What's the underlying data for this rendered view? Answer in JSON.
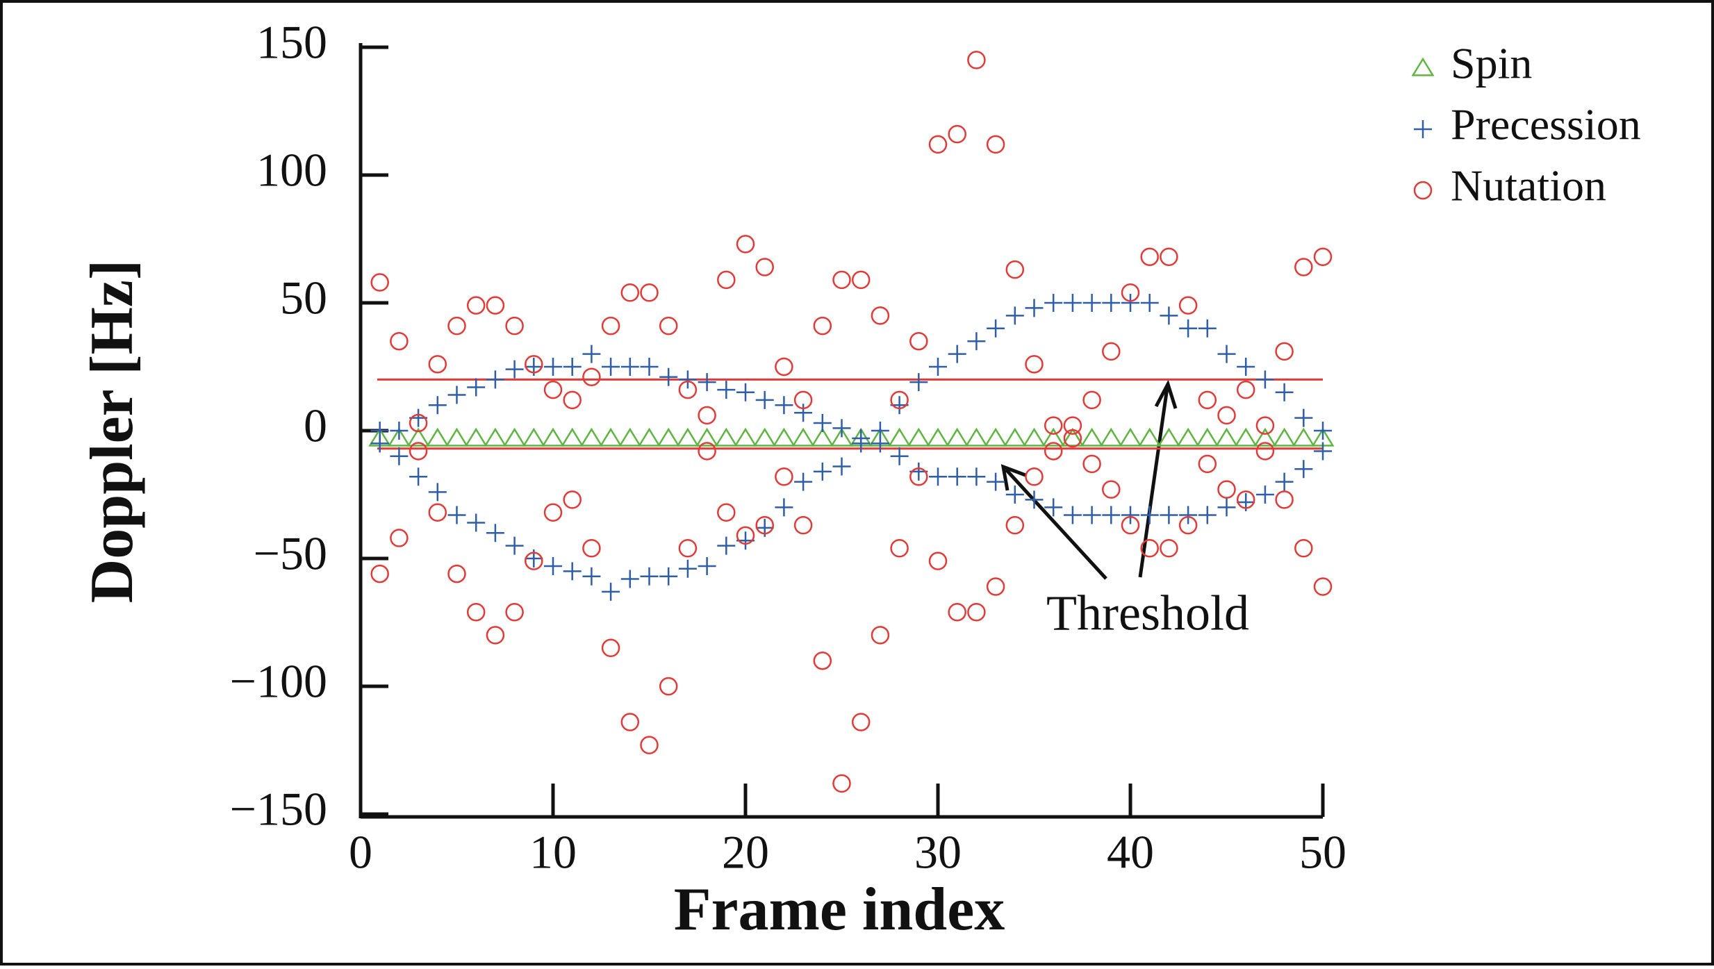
{
  "chart_data": {
    "type": "scatter",
    "xlabel": "Frame index",
    "ylabel": "Doppler [Hz]",
    "xlim": [
      0,
      50
    ],
    "ylim": [
      -150,
      150
    ],
    "xticks": [
      0,
      10,
      20,
      30,
      40,
      50
    ],
    "yticks": [
      {
        "value": -150,
        "label": "−150"
      },
      {
        "value": -100,
        "label": "−100"
      },
      {
        "value": -50,
        "label": "−50"
      },
      0,
      50,
      100,
      150
    ],
    "thresholds": [
      20,
      -7
    ],
    "threshold_color": "#e23a36",
    "annotation": "Threshold",
    "legend": "top-right",
    "series": [
      {
        "name": "Spin",
        "color": "#5fb541",
        "marker": "triangle",
        "x": [
          1,
          2,
          3,
          4,
          5,
          6,
          7,
          8,
          9,
          10,
          11,
          12,
          13,
          14,
          15,
          16,
          17,
          18,
          19,
          20,
          21,
          22,
          23,
          24,
          25,
          26,
          27,
          28,
          29,
          30,
          31,
          32,
          33,
          34,
          35,
          36,
          37,
          38,
          39,
          40,
          41,
          42,
          43,
          44,
          45,
          46,
          47,
          48,
          49,
          50
        ],
        "values": [
          -3,
          -3,
          -3,
          -3,
          -3,
          -3,
          -3,
          -3,
          -3,
          -3,
          -3,
          -3,
          -3,
          -3,
          -3,
          -3,
          -3,
          -3,
          -3,
          -3,
          -3,
          -3,
          -3,
          -3,
          -3,
          -3,
          -3,
          -3,
          -3,
          -3,
          -3,
          -3,
          -3,
          -3,
          -3,
          -3,
          -3,
          -3,
          -3,
          -3,
          -3,
          -3,
          -3,
          -3,
          -3,
          -3,
          -3,
          -3,
          -3,
          -3
        ]
      },
      {
        "name": "Precession",
        "color": "#2f5ea8",
        "marker": "plus",
        "x": [
          1,
          2,
          3,
          4,
          5,
          6,
          7,
          8,
          9,
          10,
          11,
          12,
          13,
          14,
          15,
          16,
          17,
          18,
          19,
          20,
          21,
          22,
          23,
          24,
          25,
          26,
          27,
          28,
          29,
          30,
          31,
          32,
          33,
          34,
          35,
          36,
          37,
          38,
          39,
          40,
          41,
          42,
          43,
          44,
          45,
          46,
          47,
          48,
          49,
          50,
          1,
          2,
          3,
          4,
          5,
          6,
          7,
          8,
          9,
          10,
          11,
          12,
          13,
          14,
          15,
          16,
          17,
          18,
          19,
          20,
          21,
          22,
          23,
          24,
          25,
          26,
          27,
          28,
          29,
          30,
          31,
          32,
          33,
          34,
          35,
          36,
          37,
          38,
          39,
          40,
          41,
          42,
          43,
          44,
          45,
          46,
          47,
          48,
          49,
          50
        ],
        "values": [
          0,
          0,
          5,
          10,
          14,
          17,
          20,
          24,
          25,
          25,
          25,
          30,
          25,
          25,
          25,
          21,
          20,
          19,
          16,
          15,
          12,
          10,
          7,
          3,
          1,
          -3,
          0,
          10,
          19,
          25,
          30,
          35,
          40,
          45,
          48,
          50,
          50,
          50,
          50,
          50,
          50,
          45,
          40,
          40,
          30,
          25,
          20,
          15,
          5,
          0,
          -5,
          -10,
          -18,
          -24,
          -33,
          -36,
          -40,
          -45,
          -50,
          -53,
          -55,
          -57,
          -63,
          -58,
          -57,
          -57,
          -54,
          -53,
          -45,
          -43,
          -38,
          -30,
          -20,
          -16,
          -14,
          -5,
          -5,
          -10,
          -16,
          -18,
          -18,
          -18,
          -20,
          -25,
          -27,
          -30,
          -33,
          -33,
          -33,
          -33,
          -33,
          -33,
          -33,
          -33,
          -30,
          -28,
          -25,
          -20,
          -15,
          -8
        ]
      },
      {
        "name": "Nutation",
        "color": "#e23a36",
        "marker": "circle",
        "x": [
          1,
          1,
          2,
          2,
          3,
          3,
          4,
          4,
          5,
          5,
          6,
          6,
          7,
          7,
          8,
          8,
          9,
          9,
          10,
          10,
          11,
          11,
          12,
          12,
          13,
          13,
          14,
          14,
          15,
          15,
          16,
          16,
          17,
          17,
          18,
          18,
          19,
          19,
          20,
          20,
          21,
          21,
          22,
          22,
          23,
          23,
          24,
          24,
          25,
          25,
          26,
          26,
          27,
          27,
          28,
          28,
          29,
          29,
          30,
          30,
          31,
          31,
          32,
          32,
          33,
          33,
          34,
          34,
          35,
          35,
          36,
          36,
          37,
          37,
          38,
          38,
          39,
          39,
          40,
          40,
          41,
          41,
          42,
          42,
          43,
          43,
          44,
          44,
          45,
          45,
          46,
          46,
          47,
          47,
          48,
          48,
          49,
          49,
          50,
          50
        ],
        "values": [
          58,
          -56,
          35,
          -42,
          3,
          -8,
          26,
          -32,
          41,
          -56,
          49,
          -71,
          49,
          -80,
          41,
          -71,
          26,
          -51,
          16,
          -32,
          12,
          -27,
          21,
          -46,
          41,
          -85,
          54,
          -114,
          54,
          -123,
          41,
          -100,
          16,
          -46,
          6,
          -8,
          59,
          -32,
          73,
          -41,
          64,
          -37,
          25,
          -18,
          12,
          -37,
          41,
          -90,
          59,
          -138,
          59,
          -114,
          45,
          -80,
          12,
          -46,
          35,
          -18,
          112,
          -51,
          116,
          -71,
          145,
          -71,
          112,
          -61,
          63,
          -37,
          26,
          -18,
          2,
          -8,
          2,
          -3,
          12,
          -13,
          31,
          -23,
          54,
          -37,
          68,
          -46,
          68,
          -46,
          49,
          -37,
          12,
          -13,
          6,
          -23,
          16,
          -27,
          2,
          -8,
          31,
          -27,
          64,
          -46,
          68,
          -61
        ]
      }
    ]
  }
}
